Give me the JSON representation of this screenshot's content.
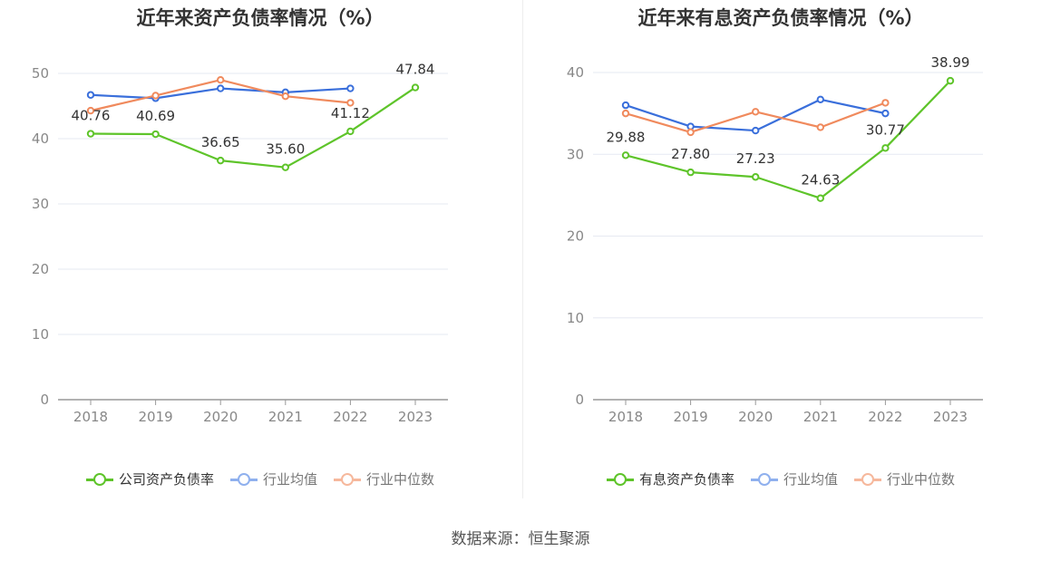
{
  "source_text": "数据来源：恒生聚源",
  "colors": {
    "company": "#5ec42a",
    "industry_avg": "#3a6fdb",
    "industry_median": "#f08a5d",
    "grid": "#e6e9f2",
    "axis": "#999999"
  },
  "chart_data": [
    {
      "type": "line",
      "title": "近年来资产负债率情况（%）",
      "categories": [
        "2018",
        "2019",
        "2020",
        "2021",
        "2022",
        "2023"
      ],
      "ylim": [
        0,
        50
      ],
      "yticks": [
        0,
        10,
        20,
        30,
        40,
        50
      ],
      "grid": true,
      "legend_position": "bottom",
      "series": [
        {
          "name": "公司资产负债率",
          "values": [
            40.76,
            40.69,
            36.65,
            35.6,
            41.12,
            47.84
          ],
          "labels": [
            "40.76",
            "40.69",
            "36.65",
            "35.60",
            "41.12",
            "47.84"
          ]
        },
        {
          "name": "行业均值",
          "values": [
            46.7,
            46.2,
            47.7,
            47.1,
            47.7,
            null
          ]
        },
        {
          "name": "行业中位数",
          "values": [
            44.3,
            46.6,
            49.0,
            46.5,
            45.5,
            null
          ]
        }
      ]
    },
    {
      "type": "line",
      "title": "近年来有息资产负债率情况（%）",
      "categories": [
        "2018",
        "2019",
        "2020",
        "2021",
        "2022",
        "2023"
      ],
      "ylim": [
        0,
        40
      ],
      "yticks": [
        0,
        10,
        20,
        30,
        40
      ],
      "grid": true,
      "legend_position": "bottom",
      "series": [
        {
          "name": "有息资产负债率",
          "values": [
            29.88,
            27.8,
            27.23,
            24.63,
            30.77,
            38.99
          ],
          "labels": [
            "29.88",
            "27.80",
            "27.23",
            "24.63",
            "30.77",
            "38.99"
          ]
        },
        {
          "name": "行业均值",
          "values": [
            36.0,
            33.4,
            32.9,
            36.7,
            35.0,
            null
          ]
        },
        {
          "name": "行业中位数",
          "values": [
            35.0,
            32.7,
            35.2,
            33.3,
            36.3,
            null
          ]
        }
      ]
    }
  ]
}
